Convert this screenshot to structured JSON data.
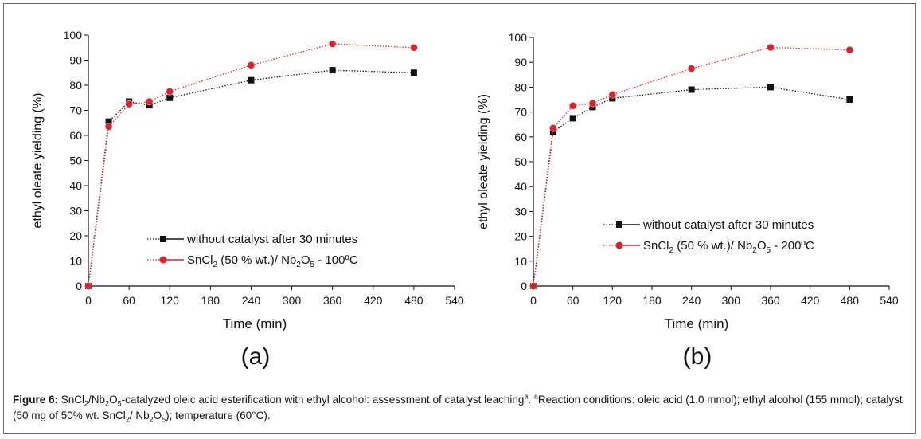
{
  "charts": [
    {
      "panel_label": "(a)",
      "ylabel": "ethyl oleate yielding (%)",
      "xlabel": "Time (min)",
      "legend": [
        {
          "series": 0,
          "label": "without catalyst after 30 minutes"
        },
        {
          "series": 1,
          "label_main": "SnCl",
          "label_sub": "2",
          "label_mid": " (50 % wt.)/ Nb",
          "label_sub2": "2",
          "label_o": "O",
          "label_sub3": "5",
          "label_end": " - 100ºC"
        }
      ]
    },
    {
      "panel_label": "(b)",
      "ylabel": "ethyl oleate yielding (%)",
      "xlabel": "Time (min)",
      "legend": [
        {
          "series": 0,
          "label": "without catalyst after 30 minutes"
        },
        {
          "series": 1,
          "label_main": "SnCl",
          "label_sub": "2",
          "label_mid": " (50 % wt.)/ Nb",
          "label_sub2": "2",
          "label_o": "O",
          "label_sub3": "5",
          "label_end": " - 200ºC"
        }
      ]
    }
  ],
  "chart_data": [
    {
      "type": "line",
      "xlabel": "Time (min)",
      "ylabel": "ethyl oleate yielding (%)",
      "xlim": [
        0,
        540
      ],
      "ylim": [
        0,
        100
      ],
      "xticks": [
        0,
        60,
        120,
        180,
        240,
        300,
        360,
        420,
        480,
        540
      ],
      "yticks": [
        0,
        10,
        20,
        30,
        40,
        50,
        60,
        70,
        80,
        90,
        100
      ],
      "grid": false,
      "legend_position": "lower-right",
      "series": [
        {
          "name": "without catalyst after 30 minutes",
          "color": "#111111",
          "marker": "square",
          "x": [
            0,
            30,
            60,
            90,
            120,
            240,
            360,
            480
          ],
          "y": [
            0,
            65.5,
            73.5,
            72,
            75,
            82,
            86,
            85
          ]
        },
        {
          "name": "SnCl2 (50 % wt.)/ Nb2O5 - 100ºC",
          "color": "#e0202a",
          "marker": "circle",
          "x": [
            0,
            30,
            60,
            90,
            120,
            240,
            360,
            480
          ],
          "y": [
            0,
            63.5,
            72.5,
            73.5,
            77.5,
            88,
            96.5,
            95
          ]
        }
      ]
    },
    {
      "type": "line",
      "xlabel": "Time (min)",
      "ylabel": "ethyl oleate yielding (%)",
      "xlim": [
        0,
        540
      ],
      "ylim": [
        0,
        100
      ],
      "xticks": [
        0,
        60,
        120,
        180,
        240,
        300,
        360,
        420,
        480,
        540
      ],
      "yticks": [
        0,
        10,
        20,
        30,
        40,
        50,
        60,
        70,
        80,
        90,
        100
      ],
      "grid": false,
      "legend_position": "lower-right",
      "series": [
        {
          "name": "without catalyst after 30 minutes",
          "color": "#111111",
          "marker": "square",
          "x": [
            0,
            30,
            60,
            90,
            120,
            240,
            360,
            480
          ],
          "y": [
            0,
            62,
            67.5,
            72,
            75.5,
            79,
            80,
            75
          ]
        },
        {
          "name": "SnCl2 (50 % wt.)/ Nb2O5 - 200ºC",
          "color": "#e0202a",
          "marker": "circle",
          "x": [
            0,
            30,
            60,
            90,
            120,
            240,
            360,
            480
          ],
          "y": [
            0,
            63.5,
            72.5,
            73.5,
            77,
            87.5,
            96,
            95
          ]
        }
      ]
    }
  ],
  "caption": {
    "figure_label": "Figure 6:",
    "t1": " SnCl",
    "s1": "2",
    "t2": "/Nb",
    "s2": "2",
    "t3": "O",
    "s3": "5",
    "t4": "-catalyzed oleic acid esterification with ethyl alcohol: assessment of catalyst leaching",
    "sup1": "a",
    "t5": ". ",
    "sup2": "a",
    "t6": "Reaction conditions: oleic acid (1.0 mmol); ethyl alcohol (155 mmol); catalyst (50 mg of 50% wt. SnCl",
    "s4": "2",
    "t7": "/ Nb",
    "s5": "2",
    "t8": "O",
    "s6": "5",
    "t9": "); temperature (60°C)."
  }
}
